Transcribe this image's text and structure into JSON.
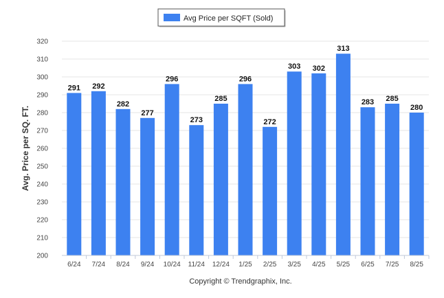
{
  "legend": {
    "label": "Avg Price per SQFT (Sold)",
    "placement": "top-center"
  },
  "footer": {
    "copyright": "Copyright © Trendgraphix, Inc."
  },
  "chart_data": {
    "type": "bar",
    "categories": [
      "6/24",
      "7/24",
      "8/24",
      "9/24",
      "10/24",
      "11/24",
      "12/24",
      "1/25",
      "2/25",
      "3/25",
      "4/25",
      "5/25",
      "6/25",
      "7/25",
      "8/25"
    ],
    "series": [
      {
        "name": "Avg Price per SQFT (Sold)",
        "values": [
          291,
          292,
          282,
          277,
          296,
          273,
          285,
          296,
          272,
          303,
          302,
          313,
          283,
          285,
          280
        ],
        "color": "#3d81f0"
      }
    ],
    "title": "",
    "xlabel": "",
    "ylabel": "Avg. Price per SQ. FT.",
    "ylim": [
      200,
      320
    ],
    "yticks": [
      200,
      210,
      220,
      230,
      240,
      250,
      260,
      270,
      280,
      290,
      300,
      310,
      320
    ],
    "grid": true,
    "data_labels": true
  }
}
